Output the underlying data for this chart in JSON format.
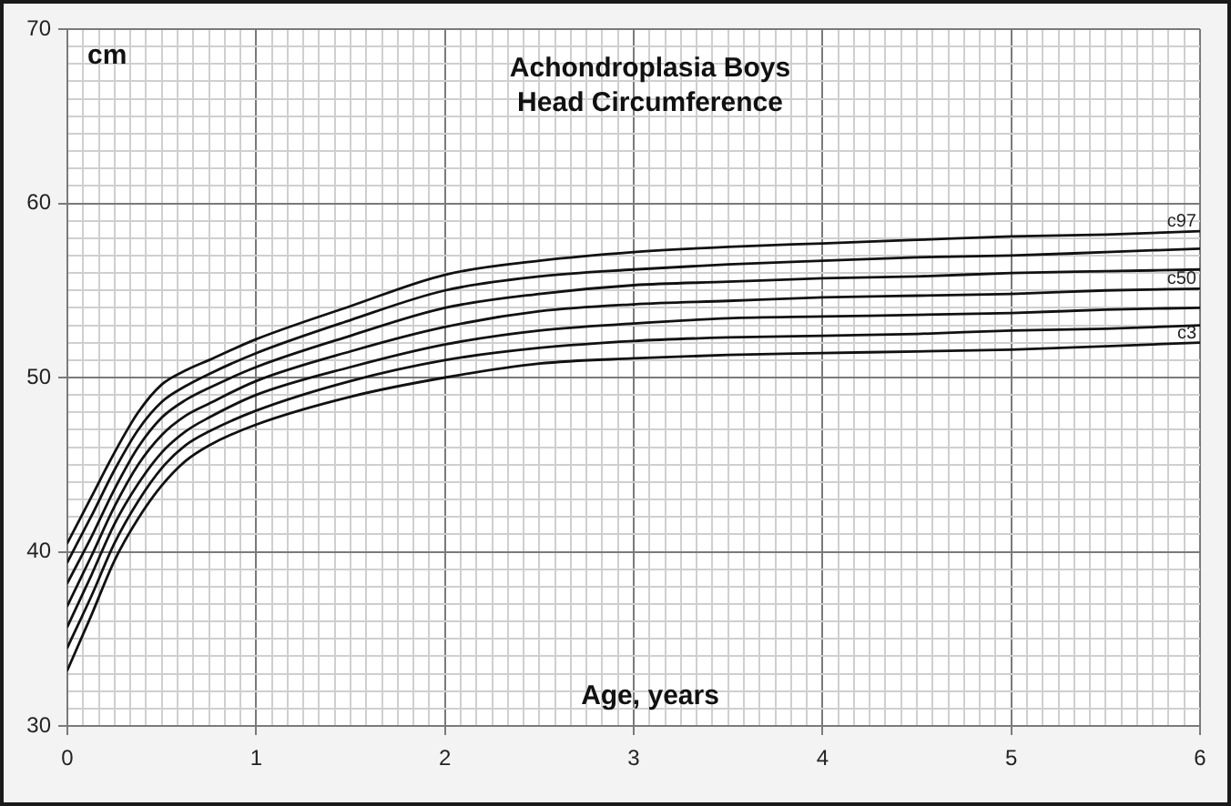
{
  "chart_data": {
    "type": "line",
    "title": "Achondroplasia Boys\nHead Circumference",
    "xlabel": "Age, years",
    "ylabel": "cm",
    "x": [
      0,
      0.125,
      0.25,
      0.375,
      0.5,
      0.625,
      0.75,
      1,
      1.5,
      2,
      2.5,
      3,
      3.5,
      4,
      4.5,
      5,
      5.5,
      6
    ],
    "series": [
      {
        "name": "c97",
        "color": "#111111",
        "values": [
          40.5,
          43.1,
          45.7,
          48.0,
          49.6,
          50.4,
          51.0,
          52.2,
          54.1,
          55.9,
          56.7,
          57.2,
          57.5,
          57.7,
          57.9,
          58.1,
          58.2,
          58.4
        ]
      },
      {
        "color": "#111111",
        "values": [
          39.4,
          42.0,
          44.7,
          47.0,
          48.6,
          49.5,
          50.2,
          51.4,
          53.3,
          55.0,
          55.8,
          56.2,
          56.5,
          56.7,
          56.9,
          57.0,
          57.2,
          57.4
        ]
      },
      {
        "color": "#111111",
        "values": [
          38.2,
          40.8,
          43.6,
          46.0,
          47.7,
          48.7,
          49.4,
          50.6,
          52.4,
          54.0,
          54.8,
          55.3,
          55.5,
          55.7,
          55.8,
          56.0,
          56.1,
          56.2
        ]
      },
      {
        "name": "c50",
        "color": "#111111",
        "values": [
          36.9,
          39.7,
          42.6,
          45.0,
          46.7,
          47.8,
          48.5,
          49.8,
          51.5,
          52.9,
          53.8,
          54.2,
          54.4,
          54.6,
          54.7,
          54.8,
          55.0,
          55.1
        ]
      },
      {
        "color": "#111111",
        "values": [
          35.7,
          38.6,
          41.6,
          43.9,
          45.7,
          46.9,
          47.7,
          49.0,
          50.6,
          51.9,
          52.7,
          53.1,
          53.4,
          53.5,
          53.6,
          53.7,
          53.9,
          54.0
        ]
      },
      {
        "color": "#111111",
        "values": [
          34.5,
          37.4,
          40.5,
          42.9,
          44.8,
          46.1,
          46.9,
          48.1,
          49.8,
          51.0,
          51.7,
          52.1,
          52.3,
          52.4,
          52.5,
          52.7,
          52.8,
          53.0
        ]
      },
      {
        "name": "c3",
        "color": "#111111",
        "values": [
          33.2,
          36.3,
          39.5,
          41.9,
          43.8,
          45.2,
          46.1,
          47.3,
          48.9,
          50.0,
          50.8,
          51.1,
          51.3,
          51.4,
          51.5,
          51.6,
          51.8,
          52.0
        ]
      }
    ],
    "xlim": [
      0,
      6
    ],
    "ylim": [
      30,
      70
    ],
    "xticks": [
      0,
      {
        "value": 0.0833,
        "label": null
      },
      {
        "value": 0.1667,
        "label": null
      },
      {
        "value": 0.25,
        "label": null
      },
      {
        "value": 0.3333,
        "label": null
      },
      {
        "value": 0.4167,
        "label": null
      },
      {
        "value": 0.5,
        "label": null
      },
      {
        "value": 0.5833,
        "label": null
      },
      {
        "value": 0.6667,
        "label": null
      },
      {
        "value": 0.75,
        "label": null
      },
      {
        "value": 0.8333,
        "label": null
      },
      {
        "value": 0.9167,
        "label": null
      },
      1,
      {
        "value": 1.0833,
        "label": null
      },
      {
        "value": 1.1667,
        "label": null
      },
      {
        "value": 1.25,
        "label": null
      },
      {
        "value": 1.3333,
        "label": null
      },
      {
        "value": 1.4167,
        "label": null
      },
      {
        "value": 1.5,
        "label": null
      },
      {
        "value": 1.5833,
        "label": null
      },
      {
        "value": 1.6667,
        "label": null
      },
      {
        "value": 1.75,
        "label": null
      },
      {
        "value": 1.8333,
        "label": null
      },
      {
        "value": 1.9167,
        "label": null
      },
      2,
      {
        "value": 2.0833,
        "label": null
      },
      {
        "value": 2.1667,
        "label": null
      },
      {
        "value": 2.25,
        "label": null
      },
      {
        "value": 2.3333,
        "label": null
      },
      {
        "value": 2.4167,
        "label": null
      },
      {
        "value": 2.5,
        "label": null
      },
      {
        "value": 2.5833,
        "label": null
      },
      {
        "value": 2.6667,
        "label": null
      },
      {
        "value": 2.75,
        "label": null
      },
      {
        "value": 2.8333,
        "label": null
      },
      {
        "value": 2.9167,
        "label": null
      },
      3,
      {
        "value": 3.0833,
        "label": null
      },
      {
        "value": 3.1667,
        "label": null
      },
      {
        "value": 3.25,
        "label": null
      },
      {
        "value": 3.3333,
        "label": null
      },
      {
        "value": 3.4167,
        "label": null
      },
      {
        "value": 3.5,
        "label": null
      },
      {
        "value": 3.5833,
        "label": null
      },
      {
        "value": 3.6667,
        "label": null
      },
      {
        "value": 3.75,
        "label": null
      },
      {
        "value": 3.8333,
        "label": null
      },
      {
        "value": 3.9167,
        "label": null
      },
      4,
      {
        "value": 4.0833,
        "label": null
      },
      {
        "value": 4.1667,
        "label": null
      },
      {
        "value": 4.25,
        "label": null
      },
      {
        "value": 4.3333,
        "label": null
      },
      {
        "value": 4.4167,
        "label": null
      },
      {
        "value": 4.5,
        "label": null
      },
      {
        "value": 4.5833,
        "label": null
      },
      {
        "value": 4.6667,
        "label": null
      },
      {
        "value": 4.75,
        "label": null
      },
      {
        "value": 4.8333,
        "label": null
      },
      {
        "value": 4.9167,
        "label": null
      },
      5,
      {
        "value": 5.0833,
        "label": null
      },
      {
        "value": 5.1667,
        "label": null
      },
      {
        "value": 5.25,
        "label": null
      },
      {
        "value": 5.3333,
        "label": null
      },
      {
        "value": 5.4167,
        "label": null
      },
      {
        "value": 5.5,
        "label": null
      },
      {
        "value": 5.5833,
        "label": null
      },
      {
        "value": 5.6667,
        "label": null
      },
      {
        "value": 5.75,
        "label": null
      },
      {
        "value": 5.8333,
        "label": null
      },
      {
        "value": 5.9167,
        "label": null
      },
      6
    ],
    "yticks": [
      30,
      {
        "value": 31,
        "label": null
      },
      {
        "value": 32,
        "label": null
      },
      {
        "value": 33,
        "label": null
      },
      {
        "value": 34,
        "label": null
      },
      {
        "value": 35,
        "label": null
      },
      {
        "value": 36,
        "label": null
      },
      {
        "value": 37,
        "label": null
      },
      {
        "value": 38,
        "label": null
      },
      {
        "value": 39,
        "label": null
      },
      40,
      {
        "value": 41,
        "label": null
      },
      {
        "value": 42,
        "label": null
      },
      {
        "value": 43,
        "label": null
      },
      {
        "value": 44,
        "label": null
      },
      {
        "value": 45,
        "label": null
      },
      {
        "value": 46,
        "label": null
      },
      {
        "value": 47,
        "label": null
      },
      {
        "value": 48,
        "label": null
      },
      {
        "value": 49,
        "label": null
      },
      50,
      {
        "value": 51,
        "label": null
      },
      {
        "value": 52,
        "label": null
      },
      {
        "value": 53,
        "label": null
      },
      {
        "value": 54,
        "label": null
      },
      {
        "value": 55,
        "label": null
      },
      {
        "value": 56,
        "label": null
      },
      {
        "value": 57,
        "label": null
      },
      {
        "value": 58,
        "label": null
      },
      {
        "value": 59,
        "label": null
      },
      60,
      {
        "value": 61,
        "label": null
      },
      {
        "value": 62,
        "label": null
      },
      {
        "value": 63,
        "label": null
      },
      {
        "value": 64,
        "label": null
      },
      {
        "value": 65,
        "label": null
      },
      {
        "value": 66,
        "label": null
      },
      {
        "value": 67,
        "label": null
      },
      {
        "value": 68,
        "label": null
      },
      {
        "value": 69,
        "label": null
      },
      70
    ],
    "grid": true,
    "legend": false,
    "marker": "none",
    "line_style": "solid"
  }
}
